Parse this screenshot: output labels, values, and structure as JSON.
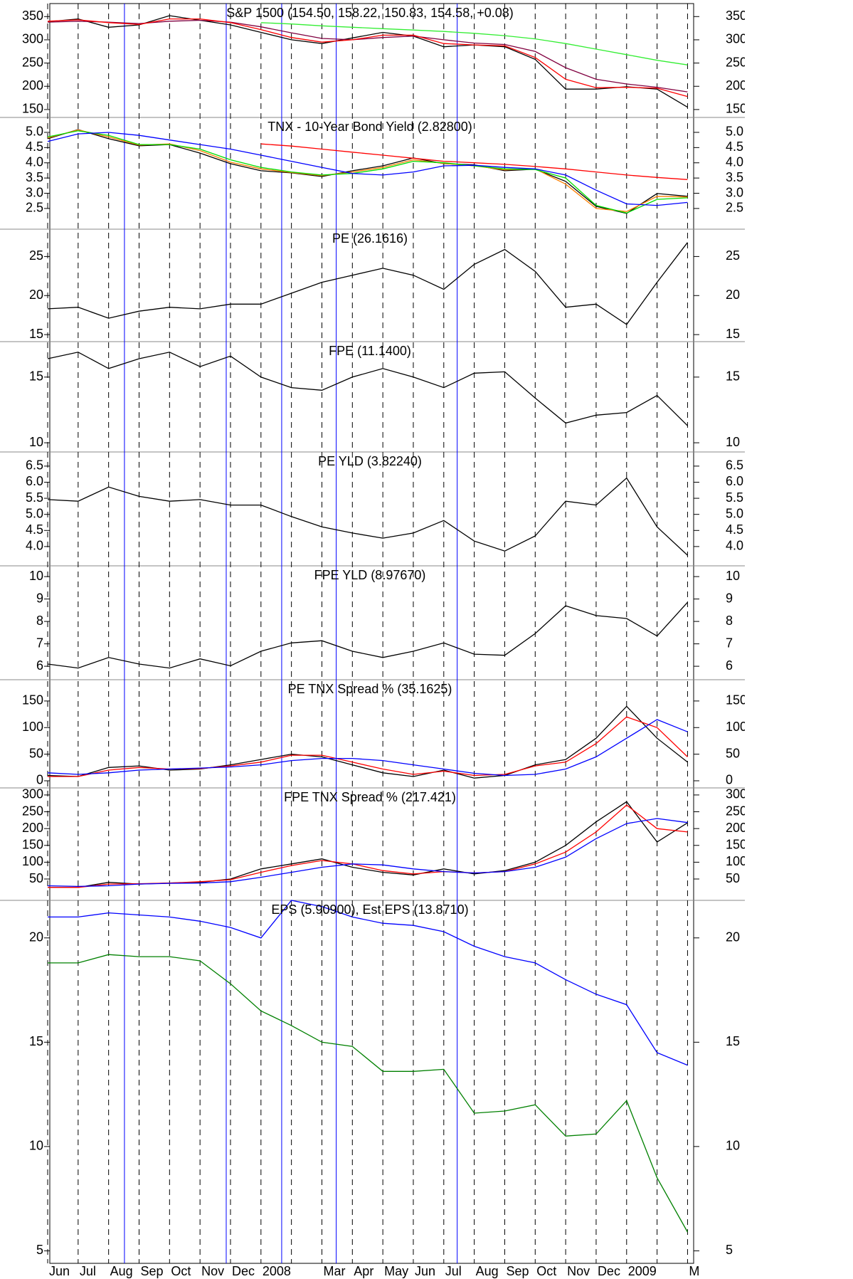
{
  "chart_data": [
    {
      "type": "line",
      "title": "S&P 1500 (154.50, 158.22, 150.83, 154.58, +0.08)",
      "x": [
        0,
        1,
        2,
        3,
        4,
        5,
        6,
        7,
        8,
        9,
        10,
        11,
        12,
        13,
        14,
        15,
        16,
        17,
        18,
        19,
        20,
        21
      ],
      "ylim": [
        133,
        378
      ],
      "yticks": [
        150,
        200,
        250,
        300,
        350
      ],
      "series": [
        {
          "color": "#000000",
          "values": [
            339,
            345,
            327,
            332,
            352,
            342,
            332,
            316,
            300,
            292,
            304,
            316,
            308,
            285,
            289,
            285,
            258,
            194,
            194,
            199,
            194,
            155
          ]
        },
        {
          "color": "#33ee33",
          "values": [
            null,
            null,
            null,
            null,
            null,
            null,
            null,
            337,
            334,
            330,
            327,
            324,
            321,
            318,
            314,
            309,
            302,
            292,
            280,
            268,
            256,
            246
          ]
        },
        {
          "color": "#800040",
          "values": [
            338,
            340,
            338,
            335,
            340,
            342,
            338,
            328,
            315,
            303,
            300,
            305,
            308,
            300,
            293,
            290,
            275,
            240,
            215,
            205,
            198,
            188
          ]
        },
        {
          "color": "#ff0000",
          "values": [
            340,
            343,
            337,
            333,
            345,
            345,
            337,
            322,
            305,
            295,
            300,
            310,
            310,
            292,
            289,
            287,
            262,
            215,
            197,
            198,
            196,
            178
          ]
        }
      ]
    },
    {
      "type": "line",
      "title": "TNX - 10-Year Bond Yield (2.82800)",
      "x": [
        0,
        1,
        2,
        3,
        4,
        5,
        6,
        7,
        8,
        9,
        10,
        11,
        12,
        13,
        14,
        15,
        16,
        17,
        18,
        19,
        20,
        21
      ],
      "ylim": [
        1.82,
        5.49
      ],
      "yticks": [
        2.5,
        {
          "value": 3,
          "label": "3.0"
        },
        3.5,
        {
          "value": 4,
          "label": "4.0"
        },
        4.5,
        {
          "value": 5,
          "label": "5.0"
        }
      ],
      "series": [
        {
          "color": "#000000",
          "values": [
            4.79,
            5.09,
            4.79,
            4.56,
            4.6,
            4.32,
            3.97,
            3.74,
            3.67,
            3.55,
            3.74,
            3.9,
            4.16,
            3.97,
            3.93,
            3.74,
            3.79,
            3.39,
            2.57,
            2.34,
            2.99,
            2.9
          ]
        },
        {
          "color": "#ff7f00",
          "values": [
            4.82,
            5.08,
            4.85,
            4.58,
            4.62,
            4.4,
            4.02,
            3.8,
            3.68,
            3.58,
            3.7,
            3.85,
            4.1,
            3.98,
            3.9,
            3.77,
            3.8,
            3.3,
            2.5,
            2.4,
            2.9,
            2.88
          ]
        },
        {
          "color": "#00dd00",
          "values": [
            4.85,
            5.05,
            4.9,
            4.6,
            4.6,
            4.45,
            4.1,
            3.85,
            3.7,
            3.6,
            3.65,
            3.8,
            4.05,
            4.0,
            3.9,
            3.8,
            3.78,
            3.5,
            2.6,
            2.35,
            2.8,
            2.85
          ]
        },
        {
          "color": "#0000ff",
          "values": [
            4.7,
            4.95,
            5.0,
            4.9,
            4.75,
            4.6,
            4.45,
            4.25,
            4.05,
            3.85,
            3.65,
            3.6,
            3.7,
            3.9,
            3.92,
            3.85,
            3.8,
            3.6,
            3.1,
            2.65,
            2.6,
            2.7
          ]
        },
        {
          "color": "#ff0000",
          "values": [
            null,
            null,
            null,
            null,
            null,
            null,
            null,
            4.62,
            4.55,
            4.45,
            4.35,
            4.25,
            4.15,
            4.05,
            4.0,
            3.95,
            3.88,
            3.8,
            3.7,
            3.6,
            3.52,
            3.45
          ]
        }
      ]
    },
    {
      "type": "line",
      "title": "PE (26.1616)",
      "x": [
        0,
        1,
        2,
        3,
        4,
        5,
        6,
        7,
        8,
        9,
        10,
        11,
        12,
        13,
        14,
        15,
        16,
        17,
        18,
        19,
        20,
        21
      ],
      "ylim": [
        14.1,
        28.5
      ],
      "yticks": [
        15,
        20,
        25
      ],
      "series": [
        {
          "color": "#000000",
          "values": [
            18.3,
            18.5,
            17.1,
            18,
            18.5,
            18.3,
            18.9,
            18.9,
            20.3,
            21.7,
            22.6,
            23.5,
            22.6,
            20.8,
            24,
            25.9,
            23.1,
            18.5,
            18.9,
            16.3,
            21.7,
            26.8
          ]
        }
      ]
    },
    {
      "type": "line",
      "title": "FPE (11.1400)",
      "x": [
        0,
        1,
        2,
        3,
        4,
        5,
        6,
        7,
        8,
        9,
        10,
        11,
        12,
        13,
        14,
        15,
        16,
        17,
        18,
        19,
        20,
        21
      ],
      "ylim": [
        9.3,
        17.7
      ],
      "yticks": [
        10,
        15
      ],
      "series": [
        {
          "color": "#000000",
          "values": [
            16.4,
            16.9,
            15.65,
            16.4,
            16.9,
            15.8,
            16.6,
            15,
            14.2,
            14.0,
            15,
            15.65,
            15,
            14.2,
            15.3,
            15.4,
            13.4,
            11.5,
            12.1,
            12.3,
            13.6,
            11.3
          ]
        }
      ]
    },
    {
      "type": "line",
      "title": "PE YLD (3.82240)",
      "x": [
        0,
        1,
        2,
        3,
        4,
        5,
        6,
        7,
        8,
        9,
        10,
        11,
        12,
        13,
        14,
        15,
        16,
        17,
        18,
        19,
        20,
        21
      ],
      "ylim": [
        3.4,
        6.94
      ],
      "yticks": [
        {
          "value": 4,
          "label": "4.0"
        },
        4.5,
        {
          "value": 5,
          "label": "5.0"
        },
        5.5,
        {
          "value": 6,
          "label": "6.0"
        },
        6.5
      ],
      "series": [
        {
          "color": "#000000",
          "values": [
            5.46,
            5.41,
            5.85,
            5.56,
            5.41,
            5.46,
            5.29,
            5.29,
            4.93,
            4.61,
            4.42,
            4.26,
            4.42,
            4.81,
            4.17,
            3.86,
            4.33,
            5.41,
            5.29,
            6.13,
            4.61,
            3.73
          ]
        }
      ]
    },
    {
      "type": "line",
      "title": "FPE YLD (8.97670)",
      "x": [
        0,
        1,
        2,
        3,
        4,
        5,
        6,
        7,
        8,
        9,
        10,
        11,
        12,
        13,
        14,
        15,
        16,
        17,
        18,
        19,
        20,
        21
      ],
      "ylim": [
        5.4,
        10.48
      ],
      "yticks": [
        6,
        7,
        8,
        9,
        10
      ],
      "series": [
        {
          "color": "#000000",
          "values": [
            6.1,
            5.92,
            6.39,
            6.1,
            5.92,
            6.33,
            6.02,
            6.67,
            7.04,
            7.14,
            6.67,
            6.39,
            6.67,
            7.04,
            6.54,
            6.49,
            7.46,
            8.7,
            8.26,
            8.13,
            7.35,
            8.85
          ]
        }
      ]
    },
    {
      "type": "line",
      "title": "PE TNX Spread % (35.1625)",
      "x": [
        0,
        1,
        2,
        3,
        4,
        5,
        6,
        7,
        8,
        9,
        10,
        11,
        12,
        13,
        14,
        15,
        16,
        17,
        18,
        19,
        20,
        21
      ],
      "ylim": [
        -13.4,
        190
      ],
      "yticks": [
        0,
        50,
        100,
        150
      ],
      "series": [
        {
          "color": "#000000",
          "values": [
            10,
            8,
            25,
            28,
            20,
            22,
            30,
            40,
            50,
            45,
            30,
            15,
            8,
            20,
            5,
            10,
            30,
            40,
            80,
            140,
            80,
            35
          ]
        },
        {
          "color": "#ff0000",
          "values": [
            8,
            8,
            20,
            25,
            22,
            23,
            28,
            35,
            48,
            48,
            35,
            22,
            12,
            18,
            10,
            12,
            28,
            35,
            70,
            120,
            100,
            45
          ]
        },
        {
          "color": "#0000ff",
          "values": [
            15,
            12,
            15,
            20,
            22,
            24,
            26,
            30,
            38,
            42,
            42,
            38,
            30,
            22,
            14,
            10,
            12,
            22,
            45,
            80,
            115,
            92
          ]
        }
      ]
    },
    {
      "type": "line",
      "title": "FPE TNX Spread % (217.421)",
      "x": [
        0,
        1,
        2,
        3,
        4,
        5,
        6,
        7,
        8,
        9,
        10,
        11,
        12,
        13,
        14,
        15,
        16,
        17,
        18,
        19,
        20,
        21
      ],
      "ylim": [
        -13.5,
        321
      ],
      "yticks": [
        50,
        100,
        150,
        200,
        250,
        300
      ],
      "series": [
        {
          "color": "#000000",
          "values": [
            25,
            25,
            40,
            35,
            38,
            40,
            50,
            80,
            95,
            110,
            85,
            70,
            62,
            80,
            65,
            75,
            100,
            150,
            220,
            280,
            160,
            217
          ]
        },
        {
          "color": "#ff0000",
          "values": [
            25,
            25,
            35,
            36,
            38,
            42,
            48,
            70,
            90,
            105,
            95,
            75,
            65,
            72,
            68,
            72,
            95,
            130,
            190,
            270,
            200,
            190
          ]
        },
        {
          "color": "#0000ff",
          "values": [
            30,
            28,
            30,
            35,
            37,
            38,
            42,
            55,
            70,
            85,
            95,
            92,
            80,
            72,
            68,
            72,
            85,
            115,
            170,
            215,
            230,
            218
          ]
        }
      ]
    },
    {
      "type": "line",
      "title": "EPS (5.90900), Est EPS (13.8710)",
      "x": [
        0,
        1,
        2,
        3,
        4,
        5,
        6,
        7,
        8,
        9,
        10,
        11,
        12,
        13,
        14,
        15,
        16,
        17,
        18,
        19,
        20,
        21
      ],
      "ylim": [
        4.4,
        21.8
      ],
      "yticks": [
        5,
        10,
        15,
        20
      ],
      "series": [
        {
          "color": "#0000ff",
          "values": [
            21,
            21,
            21.2,
            21.1,
            21,
            20.8,
            20.5,
            20.0,
            21.8,
            21.5,
            21,
            20.7,
            20.6,
            20.3,
            19.6,
            19.1,
            18.8,
            18,
            17.3,
            16.8,
            14.5,
            13.9
          ]
        },
        {
          "color": "#008000",
          "values": [
            18.8,
            18.8,
            19.2,
            19.1,
            19.1,
            18.9,
            17.8,
            16.5,
            15.8,
            15.0,
            14.8,
            13.6,
            13.6,
            13.7,
            11.6,
            11.7,
            12,
            10.5,
            10.6,
            12.2,
            8.5,
            5.9
          ]
        }
      ],
      "xlim": [
        0.07,
        21.2
      ],
      "xticks": [
        {
          "value": 0,
          "label": "Jun"
        },
        {
          "value": 1,
          "label": "Jul"
        },
        {
          "value": 2,
          "label": "Aug"
        },
        {
          "value": 3,
          "label": "Sep"
        },
        {
          "value": 4,
          "label": "Oct"
        },
        {
          "value": 5,
          "label": "Nov"
        },
        {
          "value": 6,
          "label": "Dec"
        },
        {
          "value": 7,
          "label": "2008"
        },
        {
          "value": 8,
          "label": null
        },
        {
          "value": 9,
          "label": "Mar"
        },
        {
          "value": 10,
          "label": "Apr"
        },
        {
          "value": 11,
          "label": "May"
        },
        {
          "value": 12,
          "label": "Jun"
        },
        {
          "value": 13,
          "label": "Jul"
        },
        {
          "value": 14,
          "label": "Aug"
        },
        {
          "value": 15,
          "label": "Sep"
        },
        {
          "value": 16,
          "label": "Oct"
        },
        {
          "value": 17,
          "label": "Nov"
        },
        {
          "value": 18,
          "label": "Dec"
        },
        {
          "value": 19,
          "label": "2009"
        },
        {
          "value": 20,
          "label": null
        },
        {
          "value": 21,
          "label": "M"
        }
      ],
      "markers": [
        2.52,
        5.86,
        7.68,
        9.47,
        13.44
      ],
      "marker_color": "#0000ff"
    }
  ]
}
